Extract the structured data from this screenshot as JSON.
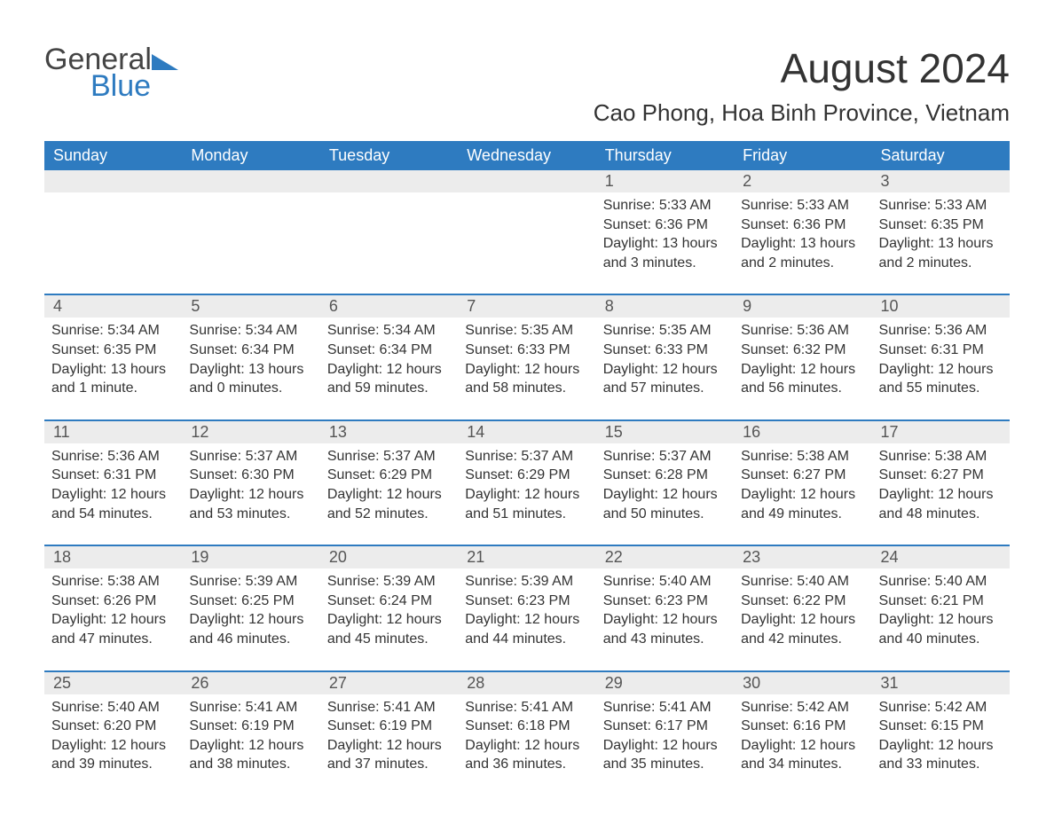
{
  "logo": {
    "text1": "General",
    "text2": "Blue",
    "shape_color": "#2e7bc0",
    "text1_color": "#444444",
    "text2_color": "#2e7bc0"
  },
  "title": "August 2024",
  "location": "Cao Phong, Hoa Binh Province, Vietnam",
  "colors": {
    "header_bg": "#2e7bc0",
    "header_text": "#ffffff",
    "daynum_bg": "#ececec",
    "row_divider": "#2e7bc0",
    "body_text": "#333333",
    "background": "#ffffff"
  },
  "typography": {
    "title_fontsize": 46,
    "location_fontsize": 26,
    "header_fontsize": 18,
    "daynum_fontsize": 18,
    "cell_fontsize": 16
  },
  "day_headers": [
    "Sunday",
    "Monday",
    "Tuesday",
    "Wednesday",
    "Thursday",
    "Friday",
    "Saturday"
  ],
  "weeks": [
    [
      null,
      null,
      null,
      null,
      {
        "day": "1",
        "sunrise": "Sunrise: 5:33 AM",
        "sunset": "Sunset: 6:36 PM",
        "daylight": "Daylight: 13 hours and 3 minutes."
      },
      {
        "day": "2",
        "sunrise": "Sunrise: 5:33 AM",
        "sunset": "Sunset: 6:36 PM",
        "daylight": "Daylight: 13 hours and 2 minutes."
      },
      {
        "day": "3",
        "sunrise": "Sunrise: 5:33 AM",
        "sunset": "Sunset: 6:35 PM",
        "daylight": "Daylight: 13 hours and 2 minutes."
      }
    ],
    [
      {
        "day": "4",
        "sunrise": "Sunrise: 5:34 AM",
        "sunset": "Sunset: 6:35 PM",
        "daylight": "Daylight: 13 hours and 1 minute."
      },
      {
        "day": "5",
        "sunrise": "Sunrise: 5:34 AM",
        "sunset": "Sunset: 6:34 PM",
        "daylight": "Daylight: 13 hours and 0 minutes."
      },
      {
        "day": "6",
        "sunrise": "Sunrise: 5:34 AM",
        "sunset": "Sunset: 6:34 PM",
        "daylight": "Daylight: 12 hours and 59 minutes."
      },
      {
        "day": "7",
        "sunrise": "Sunrise: 5:35 AM",
        "sunset": "Sunset: 6:33 PM",
        "daylight": "Daylight: 12 hours and 58 minutes."
      },
      {
        "day": "8",
        "sunrise": "Sunrise: 5:35 AM",
        "sunset": "Sunset: 6:33 PM",
        "daylight": "Daylight: 12 hours and 57 minutes."
      },
      {
        "day": "9",
        "sunrise": "Sunrise: 5:36 AM",
        "sunset": "Sunset: 6:32 PM",
        "daylight": "Daylight: 12 hours and 56 minutes."
      },
      {
        "day": "10",
        "sunrise": "Sunrise: 5:36 AM",
        "sunset": "Sunset: 6:31 PM",
        "daylight": "Daylight: 12 hours and 55 minutes."
      }
    ],
    [
      {
        "day": "11",
        "sunrise": "Sunrise: 5:36 AM",
        "sunset": "Sunset: 6:31 PM",
        "daylight": "Daylight: 12 hours and 54 minutes."
      },
      {
        "day": "12",
        "sunrise": "Sunrise: 5:37 AM",
        "sunset": "Sunset: 6:30 PM",
        "daylight": "Daylight: 12 hours and 53 minutes."
      },
      {
        "day": "13",
        "sunrise": "Sunrise: 5:37 AM",
        "sunset": "Sunset: 6:29 PM",
        "daylight": "Daylight: 12 hours and 52 minutes."
      },
      {
        "day": "14",
        "sunrise": "Sunrise: 5:37 AM",
        "sunset": "Sunset: 6:29 PM",
        "daylight": "Daylight: 12 hours and 51 minutes."
      },
      {
        "day": "15",
        "sunrise": "Sunrise: 5:37 AM",
        "sunset": "Sunset: 6:28 PM",
        "daylight": "Daylight: 12 hours and 50 minutes."
      },
      {
        "day": "16",
        "sunrise": "Sunrise: 5:38 AM",
        "sunset": "Sunset: 6:27 PM",
        "daylight": "Daylight: 12 hours and 49 minutes."
      },
      {
        "day": "17",
        "sunrise": "Sunrise: 5:38 AM",
        "sunset": "Sunset: 6:27 PM",
        "daylight": "Daylight: 12 hours and 48 minutes."
      }
    ],
    [
      {
        "day": "18",
        "sunrise": "Sunrise: 5:38 AM",
        "sunset": "Sunset: 6:26 PM",
        "daylight": "Daylight: 12 hours and 47 minutes."
      },
      {
        "day": "19",
        "sunrise": "Sunrise: 5:39 AM",
        "sunset": "Sunset: 6:25 PM",
        "daylight": "Daylight: 12 hours and 46 minutes."
      },
      {
        "day": "20",
        "sunrise": "Sunrise: 5:39 AM",
        "sunset": "Sunset: 6:24 PM",
        "daylight": "Daylight: 12 hours and 45 minutes."
      },
      {
        "day": "21",
        "sunrise": "Sunrise: 5:39 AM",
        "sunset": "Sunset: 6:23 PM",
        "daylight": "Daylight: 12 hours and 44 minutes."
      },
      {
        "day": "22",
        "sunrise": "Sunrise: 5:40 AM",
        "sunset": "Sunset: 6:23 PM",
        "daylight": "Daylight: 12 hours and 43 minutes."
      },
      {
        "day": "23",
        "sunrise": "Sunrise: 5:40 AM",
        "sunset": "Sunset: 6:22 PM",
        "daylight": "Daylight: 12 hours and 42 minutes."
      },
      {
        "day": "24",
        "sunrise": "Sunrise: 5:40 AM",
        "sunset": "Sunset: 6:21 PM",
        "daylight": "Daylight: 12 hours and 40 minutes."
      }
    ],
    [
      {
        "day": "25",
        "sunrise": "Sunrise: 5:40 AM",
        "sunset": "Sunset: 6:20 PM",
        "daylight": "Daylight: 12 hours and 39 minutes."
      },
      {
        "day": "26",
        "sunrise": "Sunrise: 5:41 AM",
        "sunset": "Sunset: 6:19 PM",
        "daylight": "Daylight: 12 hours and 38 minutes."
      },
      {
        "day": "27",
        "sunrise": "Sunrise: 5:41 AM",
        "sunset": "Sunset: 6:19 PM",
        "daylight": "Daylight: 12 hours and 37 minutes."
      },
      {
        "day": "28",
        "sunrise": "Sunrise: 5:41 AM",
        "sunset": "Sunset: 6:18 PM",
        "daylight": "Daylight: 12 hours and 36 minutes."
      },
      {
        "day": "29",
        "sunrise": "Sunrise: 5:41 AM",
        "sunset": "Sunset: 6:17 PM",
        "daylight": "Daylight: 12 hours and 35 minutes."
      },
      {
        "day": "30",
        "sunrise": "Sunrise: 5:42 AM",
        "sunset": "Sunset: 6:16 PM",
        "daylight": "Daylight: 12 hours and 34 minutes."
      },
      {
        "day": "31",
        "sunrise": "Sunrise: 5:42 AM",
        "sunset": "Sunset: 6:15 PM",
        "daylight": "Daylight: 12 hours and 33 minutes."
      }
    ]
  ]
}
